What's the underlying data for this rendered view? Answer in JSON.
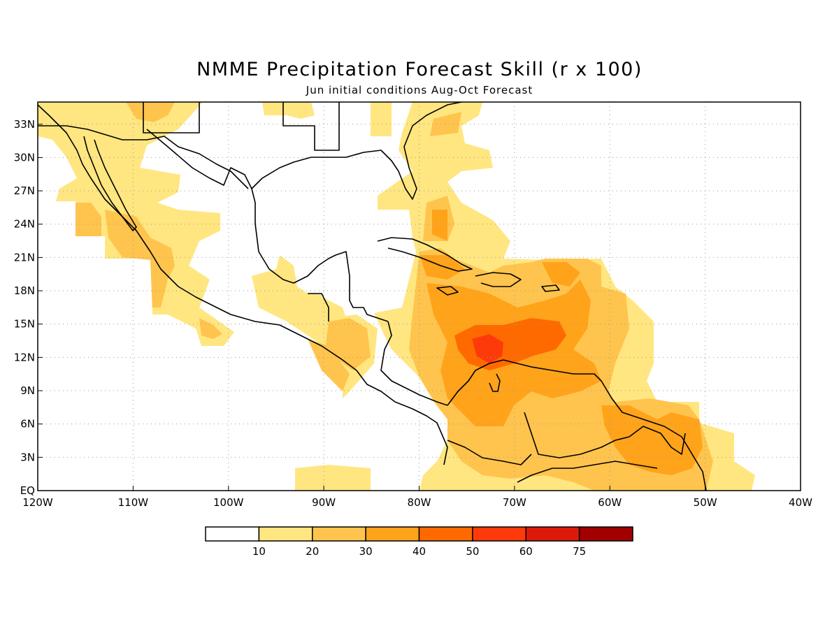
{
  "title": "NMME Precipitation Forecast Skill (r x 100)",
  "subtitle": "Jun initial conditions  Aug-Oct Forecast",
  "map": {
    "lon_range": [
      -120,
      -40
    ],
    "lat_range": [
      0,
      35
    ],
    "lon_ticks": [
      {
        "value": -120,
        "label": "120W"
      },
      {
        "value": -110,
        "label": "110W"
      },
      {
        "value": -100,
        "label": "100W"
      },
      {
        "value": -90,
        "label": "90W"
      },
      {
        "value": -80,
        "label": "80W"
      },
      {
        "value": -70,
        "label": "70W"
      },
      {
        "value": -60,
        "label": "60W"
      },
      {
        "value": -50,
        "label": "50W"
      },
      {
        "value": -40,
        "label": "40W"
      }
    ],
    "lat_ticks": [
      {
        "value": 0,
        "label": "EQ"
      },
      {
        "value": 3,
        "label": "3N"
      },
      {
        "value": 6,
        "label": "6N"
      },
      {
        "value": 9,
        "label": "9N"
      },
      {
        "value": 12,
        "label": "12N"
      },
      {
        "value": 15,
        "label": "15N"
      },
      {
        "value": 18,
        "label": "18N"
      },
      {
        "value": 21,
        "label": "21N"
      },
      {
        "value": 24,
        "label": "24N"
      },
      {
        "value": 27,
        "label": "27N"
      },
      {
        "value": 30,
        "label": "30N"
      },
      {
        "value": 33,
        "label": "33N"
      }
    ],
    "gridlines": true
  },
  "colorbar": {
    "colors": [
      "#ffffff",
      "#ffe680",
      "#ffc44d",
      "#ffa31a",
      "#ff6a00",
      "#ff3a0a",
      "#dc1a0a",
      "#a00000"
    ],
    "labels": [
      "10",
      "20",
      "30",
      "40",
      "50",
      "60",
      "75"
    ]
  },
  "colors": {
    "c10": "#ffe680",
    "c20": "#ffc44d",
    "c30": "#ffa31a",
    "c40": "#ff6a00",
    "c50": "#ff3a0a",
    "c60": "#dc1a0a",
    "c75": "#a00000",
    "coast": "#000000",
    "grid": "#999999"
  }
}
